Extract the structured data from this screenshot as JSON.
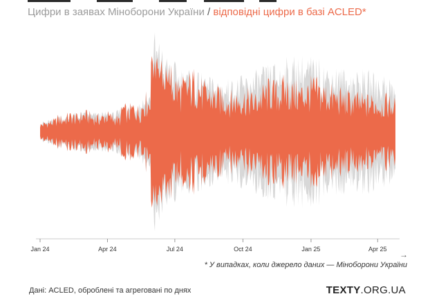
{
  "title": {
    "part1": "Цифри в заявах Міноборони України",
    "separator": " / ",
    "part2": "відповідні цифри в базі ACLED*"
  },
  "colors": {
    "ministry": "#ec6a4a",
    "acled": "#d8d8d8",
    "axis": "#cccccc",
    "text": "#333333"
  },
  "chart_data": {
    "type": "area",
    "description_free": true,
    "x_ticks": [
      "Jan 24",
      "Apr 24",
      "Jul 24",
      "Oct 24",
      "Jan 25",
      "Apr 25"
    ],
    "x_range": [
      "2024-01-01",
      "2025-04-25"
    ],
    "ylim": [
      -1,
      1
    ],
    "series": [
      {
        "name": "Міноборони України",
        "color": "#ec6a4a",
        "role": "mirrored-inner"
      },
      {
        "name": "ACLED",
        "color": "#d8d8d8",
        "role": "mirrored-outer"
      }
    ],
    "envelope_ministry": [
      [
        0,
        0.08
      ],
      [
        10,
        0.1
      ],
      [
        20,
        0.12
      ],
      [
        25,
        0.16
      ],
      [
        30,
        0.14
      ],
      [
        40,
        0.18
      ],
      [
        50,
        0.16
      ],
      [
        60,
        0.2
      ],
      [
        70,
        0.17
      ],
      [
        80,
        0.15
      ],
      [
        90,
        0.19
      ],
      [
        100,
        0.16
      ],
      [
        108,
        0.14
      ],
      [
        112,
        0.3
      ],
      [
        118,
        0.2
      ],
      [
        125,
        0.28
      ],
      [
        135,
        0.22
      ],
      [
        140,
        0.36
      ],
      [
        148,
        0.34
      ],
      [
        152,
        0.95
      ],
      [
        156,
        0.7
      ],
      [
        160,
        0.82
      ],
      [
        166,
        0.6
      ],
      [
        172,
        0.66
      ],
      [
        180,
        0.55
      ],
      [
        190,
        0.48
      ],
      [
        200,
        0.52
      ],
      [
        210,
        0.58
      ],
      [
        220,
        0.45
      ],
      [
        230,
        0.42
      ],
      [
        240,
        0.4
      ],
      [
        250,
        0.38
      ],
      [
        260,
        0.36
      ],
      [
        270,
        0.4
      ],
      [
        280,
        0.38
      ],
      [
        290,
        0.35
      ],
      [
        300,
        0.42
      ],
      [
        310,
        0.48
      ],
      [
        320,
        0.45
      ],
      [
        330,
        0.5
      ],
      [
        340,
        0.47
      ],
      [
        350,
        0.44
      ],
      [
        360,
        0.46
      ],
      [
        370,
        0.5
      ],
      [
        380,
        0.45
      ],
      [
        390,
        0.43
      ],
      [
        400,
        0.4
      ],
      [
        410,
        0.38
      ],
      [
        420,
        0.36
      ],
      [
        430,
        0.35
      ],
      [
        440,
        0.33
      ],
      [
        450,
        0.35
      ],
      [
        460,
        0.32
      ],
      [
        470,
        0.34
      ],
      [
        480,
        0.3
      ]
    ],
    "envelope_acled": [
      [
        0,
        0.09
      ],
      [
        50,
        0.18
      ],
      [
        100,
        0.18
      ],
      [
        148,
        0.36
      ],
      [
        152,
        0.96
      ],
      [
        172,
        0.68
      ],
      [
        200,
        0.56
      ],
      [
        230,
        0.5
      ],
      [
        260,
        0.48
      ],
      [
        290,
        0.55
      ],
      [
        310,
        0.62
      ],
      [
        330,
        0.66
      ],
      [
        350,
        0.7
      ],
      [
        370,
        0.68
      ],
      [
        390,
        0.62
      ],
      [
        410,
        0.58
      ],
      [
        430,
        0.56
      ],
      [
        450,
        0.55
      ],
      [
        470,
        0.52
      ],
      [
        480,
        0.46
      ]
    ]
  },
  "footnote": "* У випадках, коли джерело даних — Міноборони України",
  "source": "Дані: ACLED, оброблені та агреговані по днях",
  "brand": {
    "bold": "TEXTY",
    "thin": ".ORG.UA"
  },
  "arrow": "→"
}
